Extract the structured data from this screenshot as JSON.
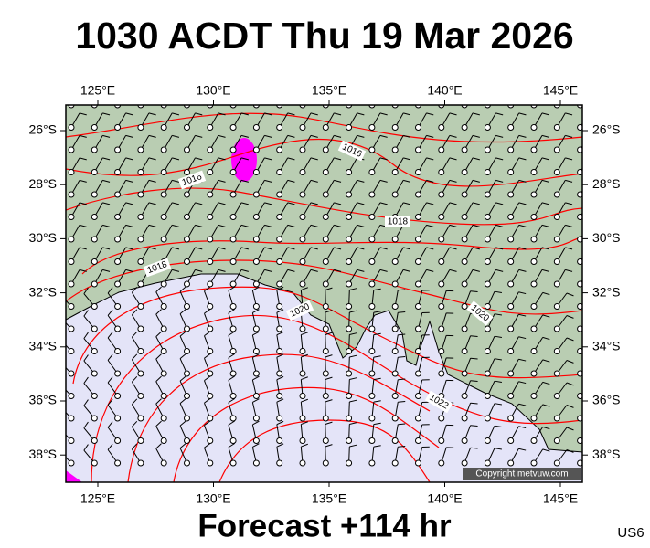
{
  "header": {
    "title": "1030 ACDT Thu 19 Mar 2026"
  },
  "map": {
    "lon_ticks": [
      {
        "value": 125,
        "label": "125°E"
      },
      {
        "value": 130,
        "label": "130°E"
      },
      {
        "value": 135,
        "label": "135°E"
      },
      {
        "value": 140,
        "label": "140°E"
      },
      {
        "value": 145,
        "label": "145°E"
      }
    ],
    "lat_ticks": [
      {
        "value": 26,
        "label": "26°S"
      },
      {
        "value": 28,
        "label": "28°S"
      },
      {
        "value": 30,
        "label": "30°S"
      },
      {
        "value": 32,
        "label": "32°S"
      },
      {
        "value": 34,
        "label": "34°S"
      },
      {
        "value": 36,
        "label": "36°S"
      },
      {
        "value": 38,
        "label": "38°S"
      }
    ],
    "isobar_labels": [
      1016,
      1016,
      1018,
      1018,
      1020,
      1020,
      1022
    ],
    "copyright": "Copyright metvuw.com"
  },
  "footer": {
    "forecast": "Forecast +114 hr",
    "code": "US6"
  }
}
